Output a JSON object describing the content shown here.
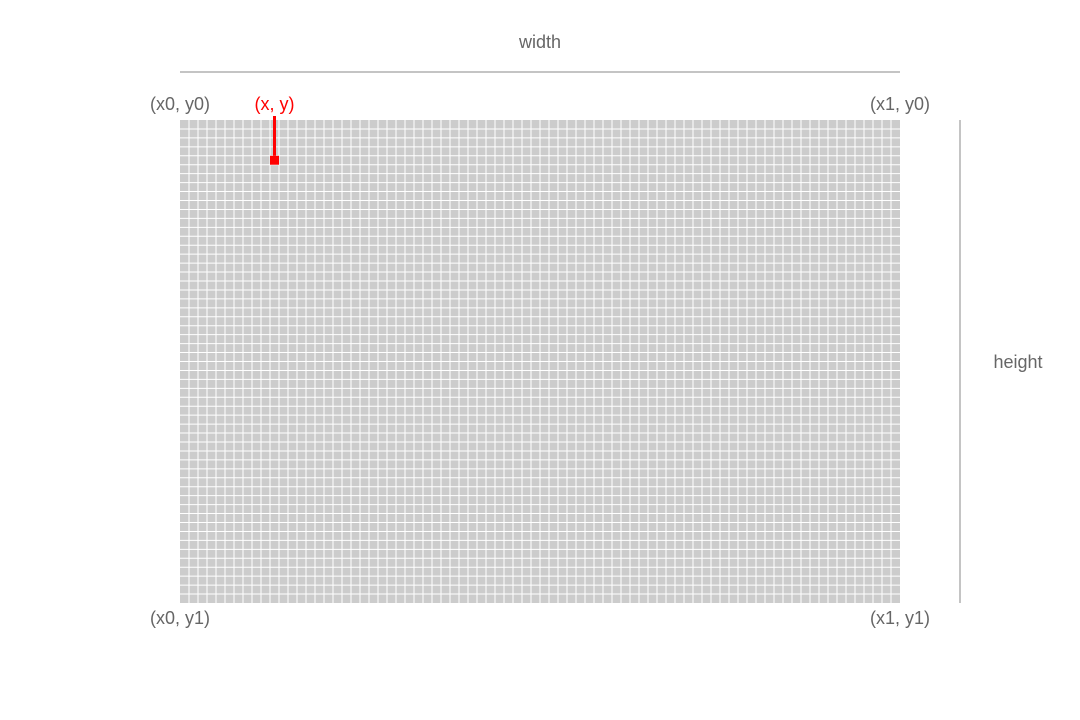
{
  "labels": {
    "width": "width",
    "height": "height",
    "top_left": "(x0, y0)",
    "top_right": "(x1, y0)",
    "bottom_left": "(x0, y1)",
    "bottom_right": "(x1, y1)",
    "point": "(x, y)"
  },
  "grid": {
    "columns": 80,
    "rows": 54,
    "highlight_column": 10,
    "highlight_row": 4
  },
  "colors": {
    "grid_cell": "#cccccc",
    "grid_line": "#ffffff",
    "axis_line": "#888888",
    "label_text": "#666666",
    "highlight": "#ff0000",
    "background": "#ffffff"
  }
}
